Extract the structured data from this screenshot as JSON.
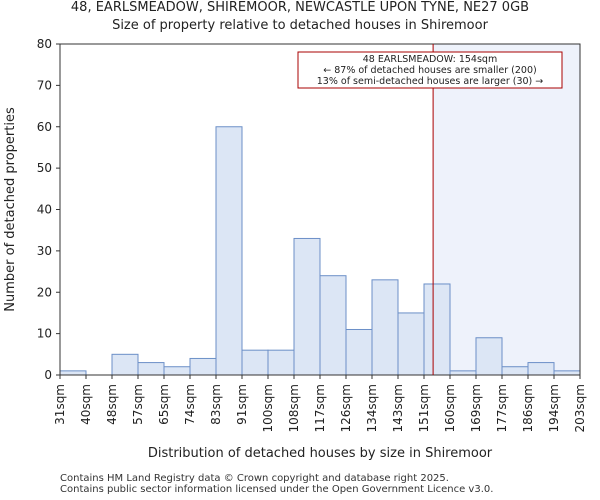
{
  "chart_data": {
    "type": "bar",
    "title": "48, EARLSMEADOW, SHIREMOOR, NEWCASTLE UPON TYNE, NE27 0GB",
    "subtitle": "Size of property relative to detached houses in Shiremoor",
    "xlabel": "Distribution of detached houses by size in Shiremoor",
    "ylabel": "Number of detached properties",
    "tick_labels": [
      "31sqm",
      "40sqm",
      "48sqm",
      "57sqm",
      "65sqm",
      "74sqm",
      "83sqm",
      "91sqm",
      "100sqm",
      "108sqm",
      "117sqm",
      "126sqm",
      "134sqm",
      "143sqm",
      "151sqm",
      "160sqm",
      "169sqm",
      "177sqm",
      "186sqm",
      "194sqm",
      "203sqm"
    ],
    "values": [
      1,
      0,
      5,
      3,
      2,
      4,
      60,
      6,
      6,
      33,
      24,
      11,
      23,
      15,
      22,
      1,
      9,
      2,
      3,
      1
    ],
    "ylim": [
      0,
      80
    ],
    "yticks": [
      0,
      10,
      20,
      30,
      40,
      50,
      60,
      70,
      80
    ],
    "marker_bin_fraction": 14.35,
    "annotation": {
      "line1": "48 EARLSMEADOW: 154sqm",
      "line2": "← 87% of detached houses are smaller (200)",
      "line3": "13% of semi-detached houses are larger (30) →"
    },
    "colors": {
      "bar_fill": "#dce6f5",
      "bar_edge": "#6b8fc7",
      "marker": "#aa0000",
      "highlight": "#eef2fb"
    }
  },
  "footer": {
    "line1": "Contains HM Land Registry data © Crown copyright and database right 2025.",
    "line2": "Contains public sector information licensed under the Open Government Licence v3.0."
  }
}
